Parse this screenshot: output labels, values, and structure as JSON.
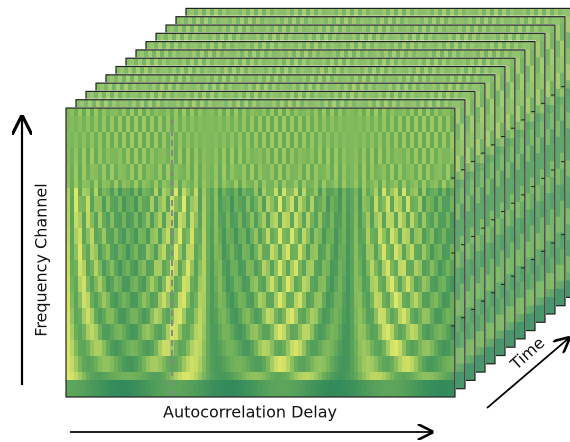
{
  "axes": {
    "y_label": "Frequency Channel",
    "x_label": "Autocorrelation Delay",
    "z_label": "Time"
  }
}
